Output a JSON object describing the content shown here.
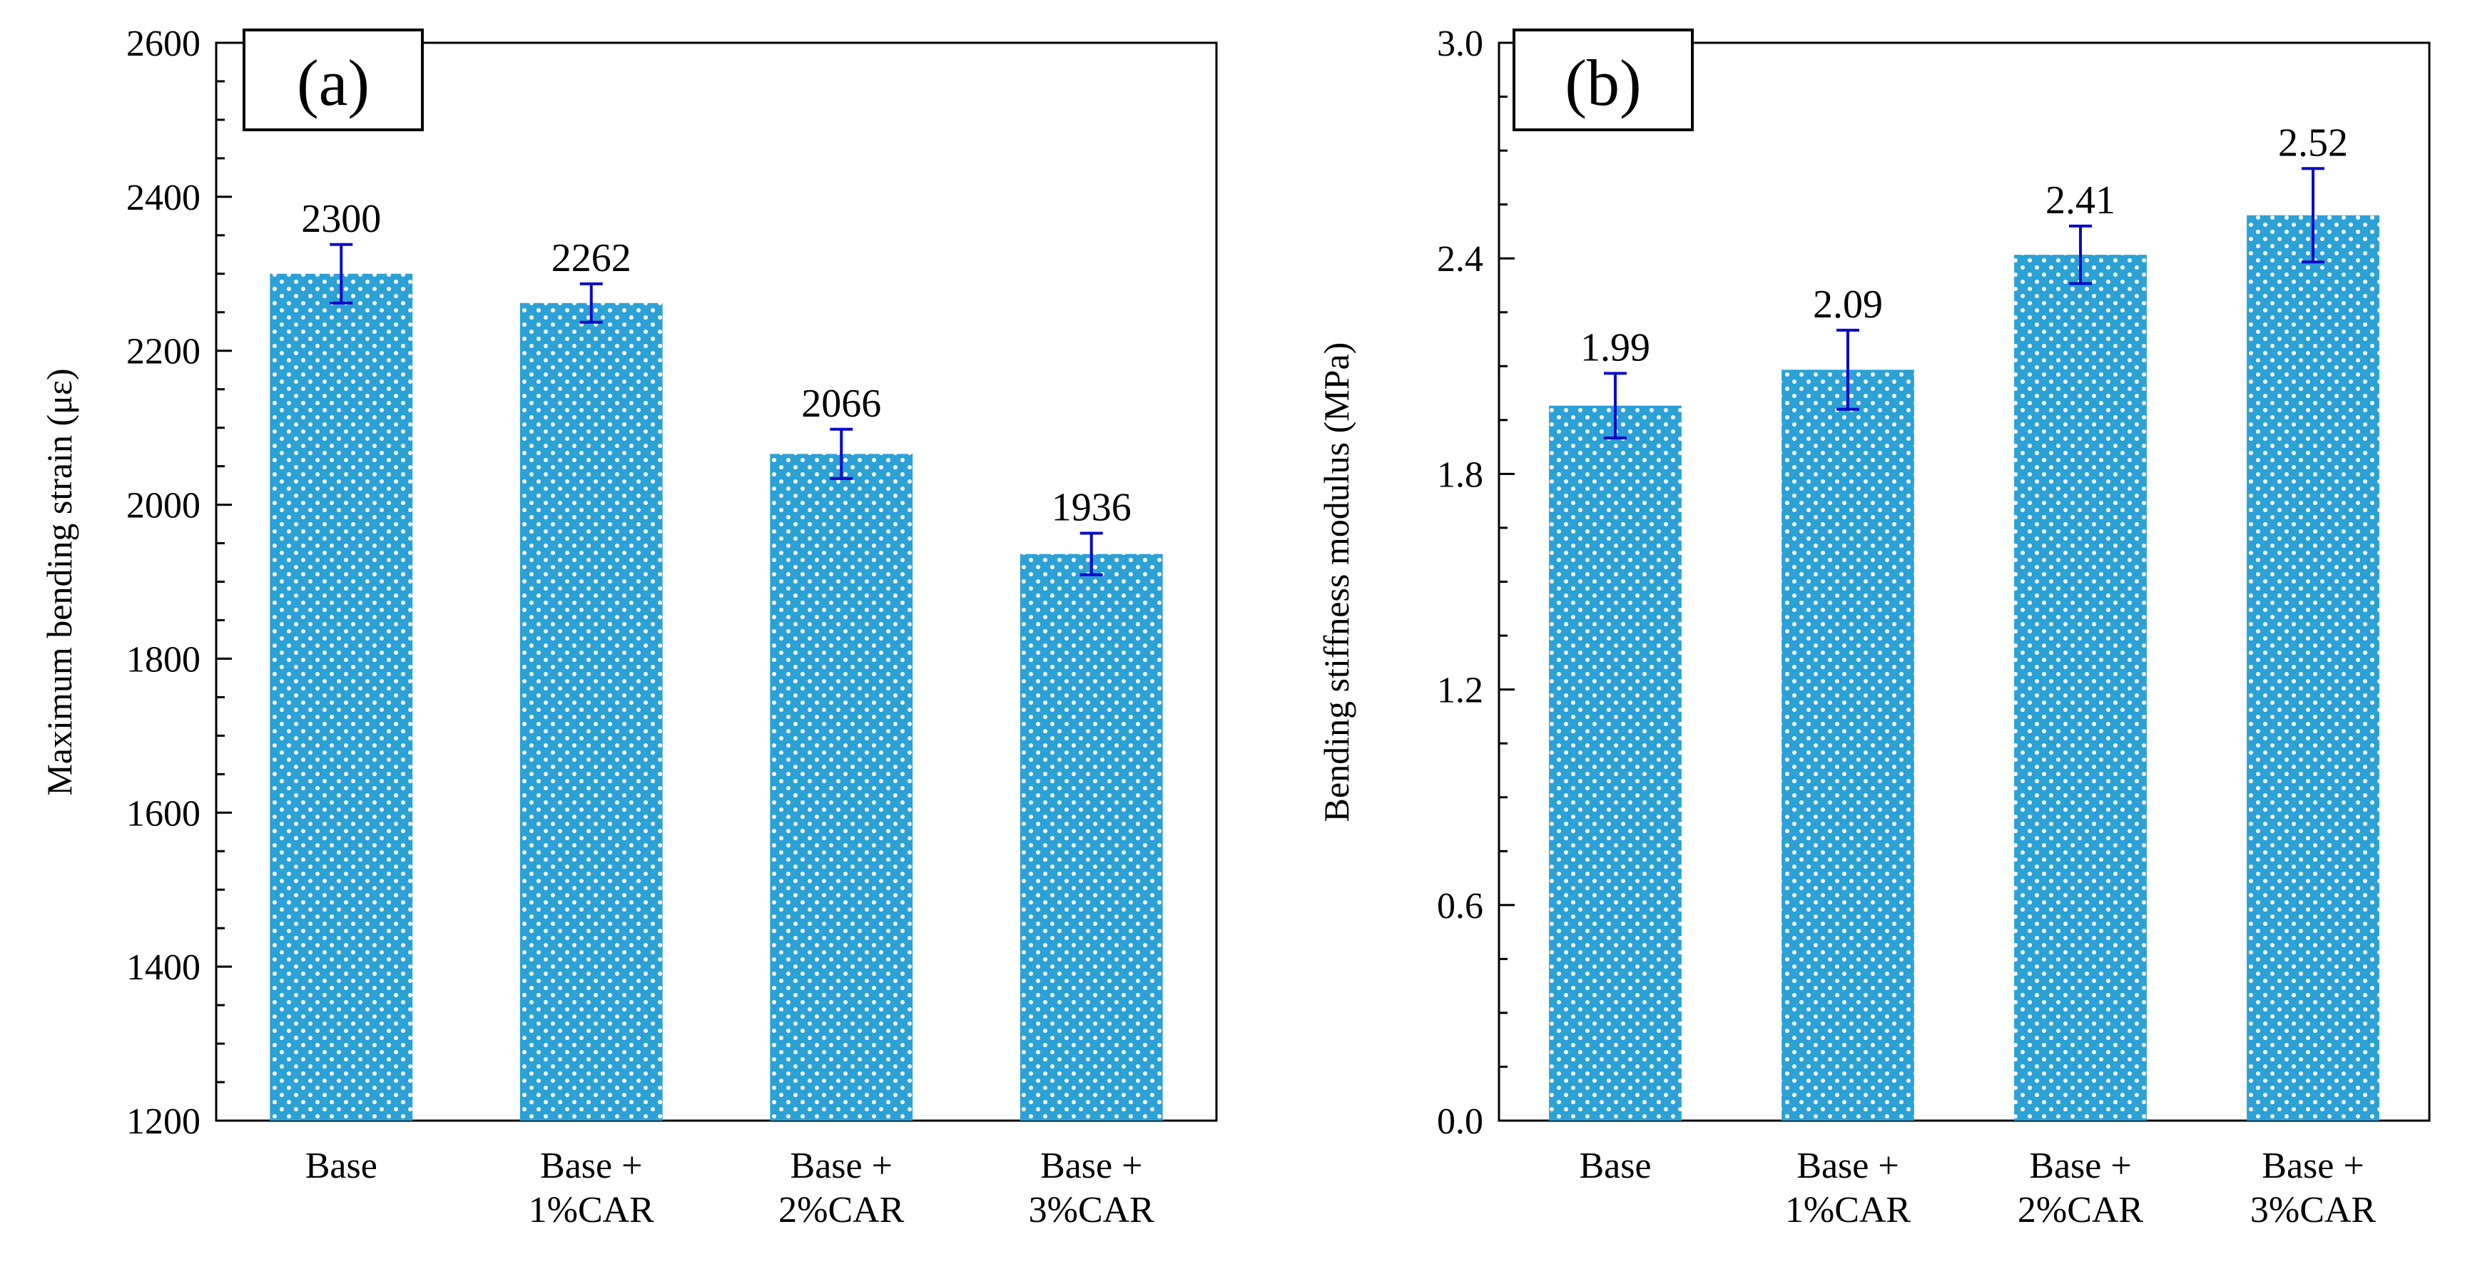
{
  "chart_data": [
    {
      "type": "bar",
      "panel_label": "(a)",
      "ylabel": "Maximum bending strain (με)",
      "categories": [
        [
          "Base"
        ],
        [
          "Base +",
          "1%CAR"
        ],
        [
          "Base +",
          "2%CAR"
        ],
        [
          "Base +",
          "3%CAR"
        ]
      ],
      "values": [
        2300,
        2262,
        2066,
        1936
      ],
      "value_labels": [
        "2300",
        "2262",
        "2066",
        "1936"
      ],
      "error": [
        38,
        25,
        32,
        27
      ],
      "ylim": [
        1200,
        2600
      ],
      "yticks": [
        1200,
        1400,
        1600,
        1800,
        2000,
        2200,
        2400,
        2600
      ],
      "ytick_labels": [
        "1200",
        "1400",
        "1600",
        "1800",
        "2000",
        "2200",
        "2400",
        "2600"
      ],
      "minor_per_major": 4,
      "grid": false,
      "legend": "none"
    },
    {
      "type": "bar",
      "panel_label": "(b)",
      "ylabel": "Bending stiffness modulus (MPa)",
      "categories": [
        [
          "Base"
        ],
        [
          "Base +",
          "1%CAR"
        ],
        [
          "Base +",
          "2%CAR"
        ],
        [
          "Base +",
          "3%CAR"
        ]
      ],
      "values": [
        1.99,
        2.09,
        2.41,
        2.52
      ],
      "value_labels": [
        "1.99",
        "2.09",
        "2.41",
        "2.52"
      ],
      "error": [
        0.09,
        0.11,
        0.08,
        0.13
      ],
      "ylim": [
        0,
        3.0
      ],
      "yticks": [
        0,
        0.6,
        1.2,
        1.8,
        2.4,
        3.0
      ],
      "ytick_labels": [
        "0.0",
        "0.6",
        "1.2",
        "1.8",
        "2.4",
        "3.0"
      ],
      "minor_per_major": 4,
      "grid": false,
      "legend": "none"
    }
  ],
  "colors": {
    "bar_fill": "#2ba1d6",
    "bar_dots": "#ffffff",
    "error_bar": "#0a0ac8",
    "axis": "#000000"
  }
}
